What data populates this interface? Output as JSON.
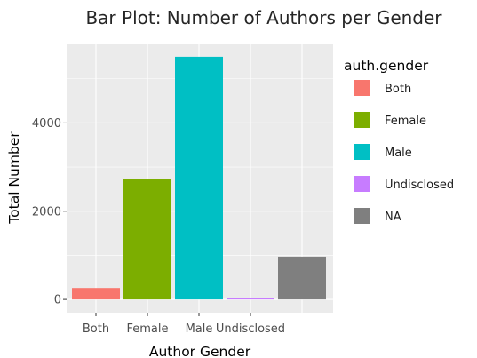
{
  "chart_data": {
    "type": "bar",
    "title": "Bar Plot: Number of Authors per Gender",
    "xlabel": "Author Gender",
    "ylabel": "Total Number",
    "categories": [
      "Both",
      "Female",
      "Male",
      "Undisclosed",
      "NA"
    ],
    "x_tick_labels": [
      "Both",
      "Female",
      "Male",
      "Undisclosed"
    ],
    "values": [
      260,
      2720,
      5500,
      40,
      970
    ],
    "colors": [
      "#F8766D",
      "#7CAE00",
      "#00BFC4",
      "#C77CFF",
      "#7F7F7F"
    ],
    "ylim": [
      -300,
      5800
    ],
    "yticks": [
      0,
      2000,
      4000
    ],
    "ytick_labels": [
      "0",
      "2000",
      "4000"
    ],
    "grid": true,
    "panel_background": "#EBEBEB",
    "legend": {
      "title": "auth.gender",
      "placement": "right",
      "entries": [
        "Both",
        "Female",
        "Male",
        "Undisclosed",
        "NA"
      ]
    }
  }
}
